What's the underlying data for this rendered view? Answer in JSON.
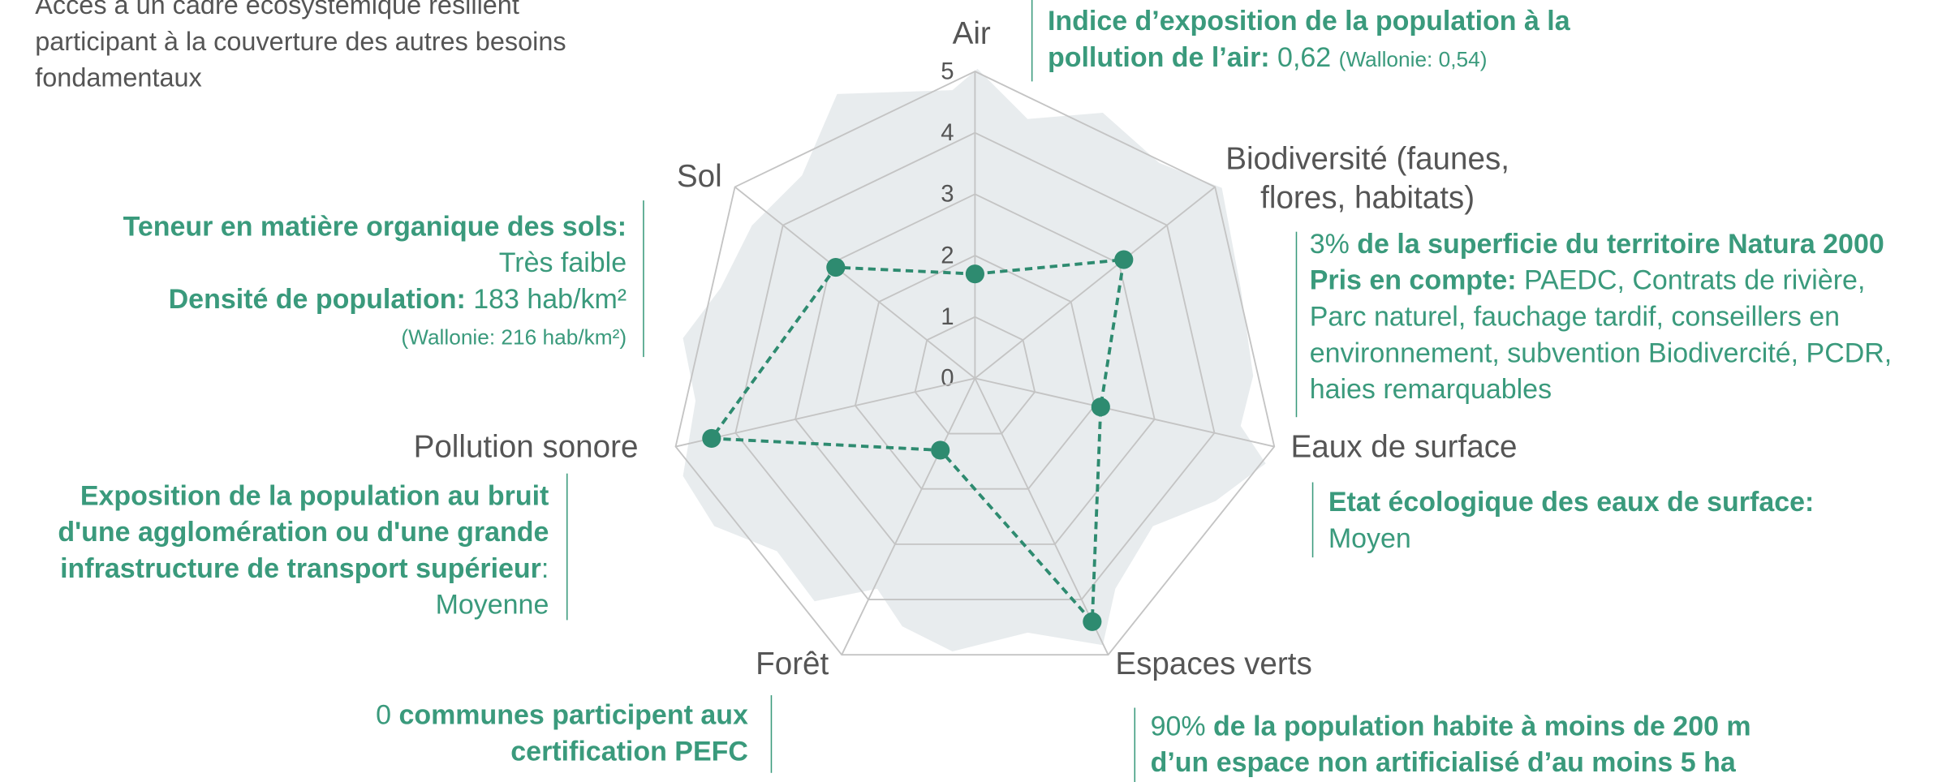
{
  "chart_data": {
    "type": "radar",
    "subtitle": [
      "Accès à un cadre écosystémique résilient",
      "participant à la couverture des autres besoins",
      "fondamentaux"
    ],
    "categories": [
      "Air",
      "Biodiversité (faunes,\nflores, habitats)",
      "Eaux de surface",
      "Espaces verts",
      "Forêt",
      "Pollution sonore",
      "Sol"
    ],
    "values": [
      1.7,
      3.1,
      2.1,
      4.4,
      1.3,
      4.4,
      2.9
    ],
    "color": "#2e8b70",
    "rlim": [
      0,
      5
    ],
    "rticks": [
      0,
      1,
      2,
      3,
      4,
      5
    ],
    "annotations": [
      {
        "lines": [
          [
            {
              "text": "Indice d’exposition de la population à la",
              "bold": true
            }
          ],
          [
            {
              "text": "pollution de l’air:",
              "bold": true
            },
            {
              "text": " 0,62 "
            },
            {
              "text": "(Wallonie: 0,54)",
              "small": true
            }
          ]
        ]
      },
      {
        "lines": [
          [
            {
              "text": "3% "
            },
            {
              "text": "de la superficie du territoire Natura 2000",
              "bold": true
            }
          ],
          [
            {
              "text": "Pris en compte:",
              "bold": true
            },
            {
              "text": " PAEDC, Contrats de rivière,"
            }
          ],
          [
            {
              "text": "Parc naturel, fauchage tardif, conseillers en"
            }
          ],
          [
            {
              "text": "environnement, subvention Biodivercité, PCDR,"
            }
          ],
          [
            {
              "text": "haies remarquables"
            }
          ]
        ]
      },
      {
        "lines": [
          [
            {
              "text": "Etat écologique des eaux de surface:",
              "bold": true
            }
          ],
          [
            {
              "text": "Moyen"
            }
          ]
        ]
      },
      {
        "lines": [
          [
            {
              "text": "90% "
            },
            {
              "text": "de la population habite à moins de 200 m",
              "bold": true
            }
          ],
          [
            {
              "text": "d’un espace non artificialisé d’au moins 5 ha",
              "bold": true
            }
          ]
        ]
      },
      {
        "lines": [
          [
            {
              "text": "0 "
            },
            {
              "text": "communes participent aux",
              "bold": true
            }
          ],
          [
            {
              "text": "certification PEFC",
              "bold": true
            }
          ]
        ]
      },
      {
        "lines": [
          [
            {
              "text": "Exposition de la population au bruit",
              "bold": true
            }
          ],
          [
            {
              "text": "d'une agglomération ou d'une grande",
              "bold": true
            }
          ],
          [
            {
              "text": "infrastructure de transport supérieur",
              "bold": true
            },
            {
              "text": ":"
            }
          ],
          [
            {
              "text": "Moyenne"
            }
          ]
        ]
      },
      {
        "lines": [
          [
            {
              "text": "Teneur en matière organique des sols:",
              "bold": true
            }
          ],
          [
            {
              "text": "Très faible"
            }
          ],
          [
            {
              "text": "Densité de population:",
              "bold": true
            },
            {
              "text": " 183 hab/km²"
            }
          ],
          [
            {
              "text": "(Wallonie: 216 hab/km²)",
              "small": true
            }
          ]
        ]
      }
    ]
  }
}
